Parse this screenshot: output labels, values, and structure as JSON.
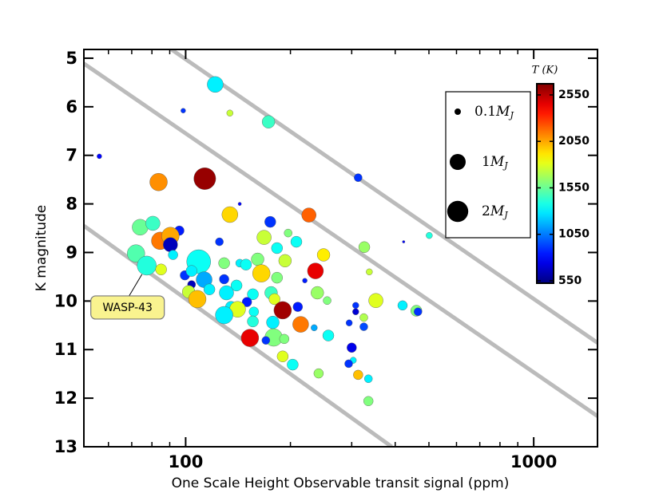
{
  "chart_data": {
    "type": "scatter",
    "xlabel": "One Scale Height Observable transit signal (ppm)",
    "ylabel": "K magnitude",
    "xscale": "log",
    "xlim": [
      51,
      1525
    ],
    "ylim": [
      13,
      4.82
    ],
    "xticks": [
      100,
      1000
    ],
    "xminorticks": [
      60,
      70,
      80,
      90,
      200,
      300,
      400,
      500,
      600,
      700,
      800,
      900
    ],
    "yticks": [
      5,
      6,
      7,
      8,
      9,
      10,
      11,
      12,
      13
    ],
    "colormap": "jet",
    "colorbar": {
      "label": "T (K)",
      "lim": [
        524,
        2670
      ],
      "ticks": [
        550,
        1050,
        1550,
        2050,
        2550
      ]
    },
    "size_legend": {
      "sizes": [
        0.1,
        1,
        2
      ],
      "unit": "M",
      "unit_subscript": "J"
    },
    "reference_lines": {
      "color": "#bbbbbb",
      "lines": [
        {
          "x": [
            91,
            1525
          ],
          "y": [
            4.82,
            10.86
          ]
        },
        {
          "x": [
            51,
            1525
          ],
          "y": [
            5.11,
            12.37
          ]
        },
        {
          "x": [
            51,
            391
          ],
          "y": [
            8.45,
            13
          ]
        }
      ]
    },
    "annotation": {
      "text": "WASP-43",
      "x": 77.3,
      "y": 9.27
    },
    "x": [
      121.6,
      173,
      98.4,
      134,
      56.5,
      113.5,
      83.6,
      313,
      143,
      134,
      226,
      175,
      74,
      80.5,
      95.9,
      197,
      423,
      501,
      84.5,
      90.4,
      168,
      125,
      208,
      183,
      326,
      90.4,
      72,
      249,
      92,
      109,
      77.3,
      161,
      193,
      85,
      143,
      129,
      149,
      165,
      236,
      99.5,
      104,
      337,
      183,
      113,
      129,
      140,
      220,
      104,
      117,
      102,
      131,
      156,
      176,
      239,
      108,
      180,
      150,
      135,
      255,
      308,
      308,
      352,
      420,
      460,
      465,
      190,
      210,
      141,
      157,
      129,
      214,
      325,
      295,
      325,
      257,
      178,
      156,
      234,
      179,
      153,
      192,
      170,
      300,
      303,
      294,
      190,
      203,
      241,
      313,
      335,
      335
    ],
    "y": [
      5.54,
      6.31,
      6.08,
      6.13,
      7.02,
      7.48,
      7.55,
      7.46,
      8.0,
      8.22,
      8.23,
      8.37,
      8.48,
      8.4,
      8.55,
      8.6,
      8.78,
      8.65,
      8.76,
      8.66,
      8.69,
      8.78,
      8.78,
      8.91,
      8.89,
      8.84,
      9.02,
      9.05,
      9.05,
      9.19,
      9.27,
      9.14,
      9.17,
      9.35,
      9.22,
      9.22,
      9.25,
      9.43,
      9.38,
      9.47,
      9.38,
      9.4,
      9.52,
      9.56,
      9.55,
      9.68,
      9.58,
      9.66,
      9.76,
      9.81,
      9.83,
      9.86,
      9.83,
      9.83,
      9.96,
      9.96,
      10.02,
      10.12,
      9.99,
      10.09,
      10.22,
      9.99,
      10.09,
      10.2,
      10.22,
      10.19,
      10.12,
      10.17,
      10.22,
      10.29,
      10.48,
      10.34,
      10.45,
      10.53,
      10.71,
      10.44,
      10.42,
      10.55,
      10.75,
      10.76,
      10.78,
      10.81,
      10.96,
      11.22,
      11.29,
      11.14,
      11.31,
      11.49,
      11.52,
      11.6,
      12.06
    ],
    "sizes": [
      1,
      0.57,
      0.05,
      0.1,
      0.05,
      2.2,
      1.27,
      0.18,
      0.02,
      1,
      0.77,
      0.41,
      1,
      0.77,
      0.28,
      0.18,
      0.01,
      0.1,
      1.27,
      1.27,
      0.77,
      0.18,
      0.41,
      0.41,
      0.41,
      0.77,
      1.27,
      0.57,
      0.28,
      2.76,
      1.58,
      0.57,
      0.57,
      0.41,
      0.18,
      0.41,
      0.41,
      1.27,
      1,
      0.28,
      0.41,
      0.1,
      0.41,
      1,
      0.28,
      0.41,
      0.05,
      0.18,
      0.41,
      0.57,
      0.77,
      0.41,
      0.57,
      0.57,
      1.27,
      0.41,
      0.28,
      0.41,
      0.18,
      0.1,
      0.1,
      0.77,
      0.28,
      0.41,
      0.18,
      1.27,
      0.28,
      1,
      0.28,
      1.27,
      1,
      0.18,
      0.1,
      0.18,
      0.41,
      0.57,
      0.41,
      0.1,
      1.27,
      1.27,
      0.28,
      0.18,
      0.28,
      0.1,
      0.18,
      0.41,
      0.41,
      0.28,
      0.28,
      0.18,
      0.28
    ],
    "temperature": [
      1300,
      1450,
      900,
      1750,
      800,
      2620,
      2100,
      900,
      800,
      1950,
      2200,
      900,
      1550,
      1450,
      850,
      1600,
      800,
      1400,
      2150,
      2050,
      1750,
      900,
      1350,
      1350,
      1650,
      650,
      1500,
      1900,
      1300,
      1350,
      1400,
      1600,
      1750,
      1800,
      1300,
      1600,
      1350,
      1950,
      2450,
      900,
      1300,
      1750,
      1600,
      1150,
      900,
      1350,
      850,
      650,
      1300,
      1750,
      1300,
      1350,
      1450,
      1650,
      2000,
      1800,
      850,
      1300,
      1600,
      900,
      700,
      1800,
      1300,
      1600,
      900,
      2600,
      850,
      1800,
      1350,
      1300,
      2150,
      1700,
      900,
      950,
      1350,
      1300,
      1400,
      1150,
      1600,
      2450,
      1600,
      900,
      750,
      1300,
      900,
      1800,
      1350,
      1650,
      2000,
      1300,
      1600
    ]
  }
}
